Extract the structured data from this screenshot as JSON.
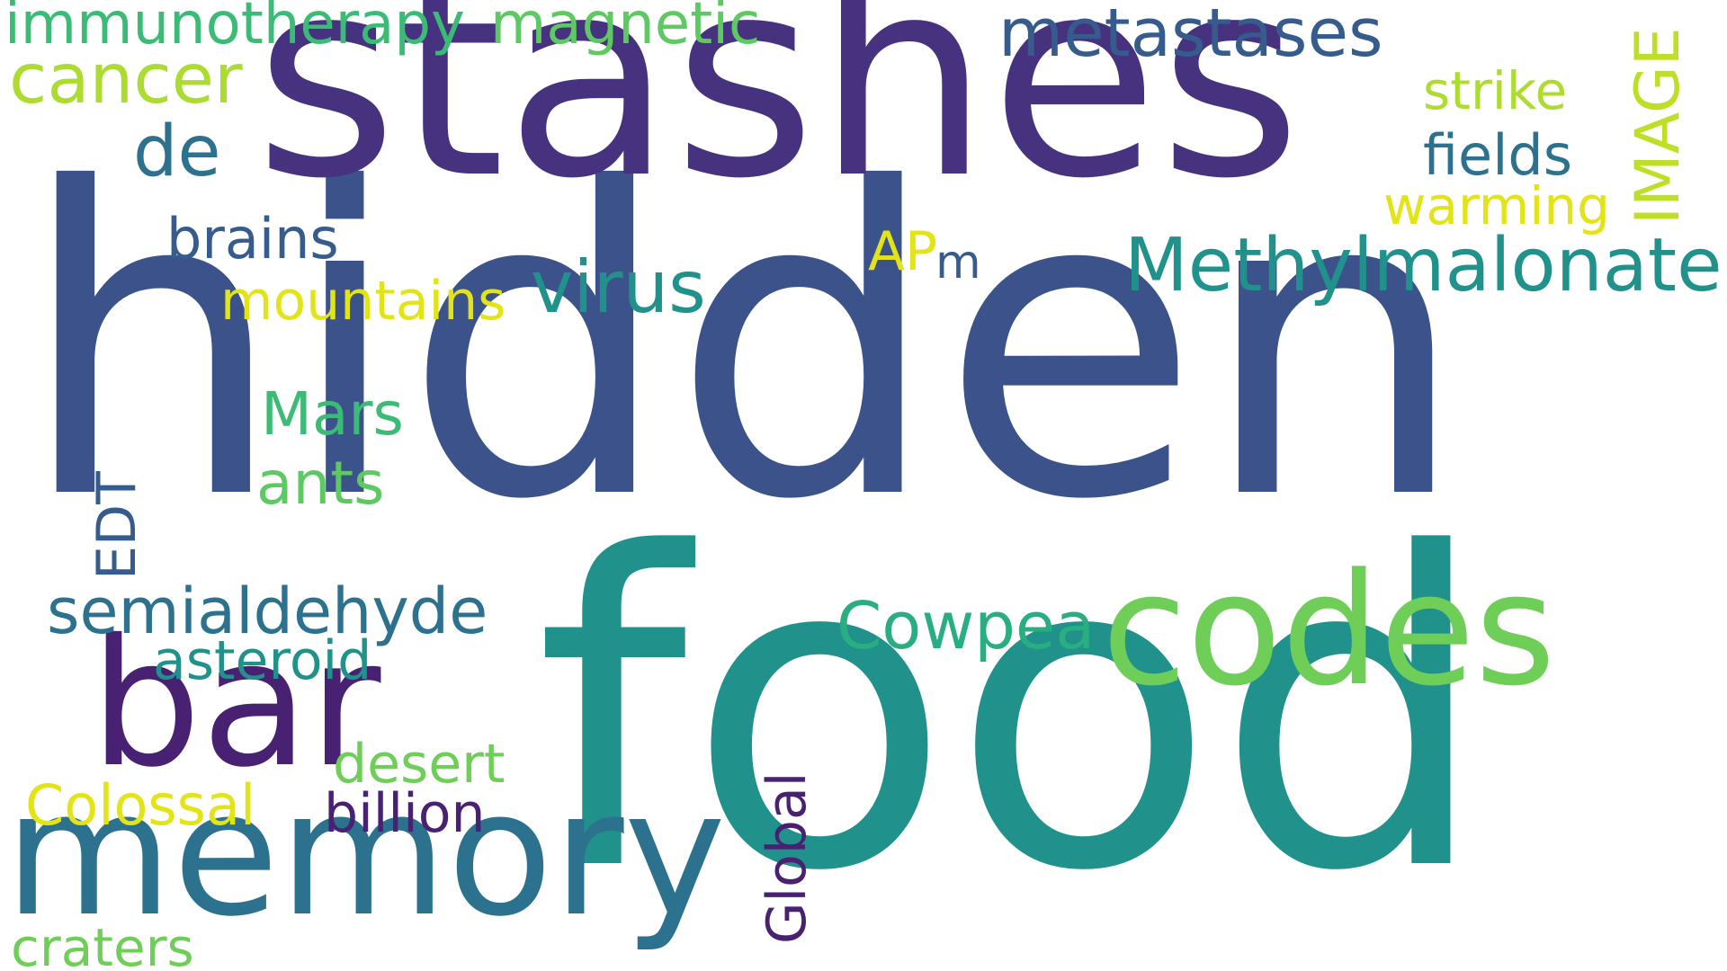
{
  "word_cloud": {
    "colors": {
      "background": "#ffffff",
      "dark_purple": "#46327e",
      "deep_purple": "#482173",
      "navy_blue": "#3b528b",
      "slate_blue": "#365c8d",
      "steel_blue": "#2c728e",
      "teal": "#21918c",
      "sea_green": "#1fa187",
      "green": "#28ae80",
      "emerald": "#3bbb75",
      "light_green": "#5ec962",
      "lime": "#6ece58",
      "yellow_green": "#addc30",
      "bright_yellow_green": "#bddf26",
      "yellow": "#e2e418"
    },
    "words": [
      {
        "text": "hidden",
        "color": "#3b528b"
      },
      {
        "text": "food",
        "color": "#21918c"
      },
      {
        "text": "stashes",
        "color": "#46327e"
      },
      {
        "text": "codes",
        "color": "#6ece58"
      },
      {
        "text": "memory",
        "color": "#2c728e"
      },
      {
        "text": "bar",
        "color": "#482173"
      },
      {
        "text": "Methylmalonate",
        "color": "#21918c"
      },
      {
        "text": "metastases",
        "color": "#365c8d"
      },
      {
        "text": "immunotherapy",
        "color": "#3bbb75"
      },
      {
        "text": "magnetic",
        "color": "#5ec962"
      },
      {
        "text": "cancer",
        "color": "#addc30"
      },
      {
        "text": "de",
        "color": "#2c728e"
      },
      {
        "text": "virus",
        "color": "#21918c"
      },
      {
        "text": "brains",
        "color": "#365c8d"
      },
      {
        "text": "mountains",
        "color": "#e2e418"
      },
      {
        "text": "AP",
        "color": "#e2e418"
      },
      {
        "text": "m",
        "color": "#365c8d"
      },
      {
        "text": "strike",
        "color": "#addc30"
      },
      {
        "text": "fields",
        "color": "#2c728e"
      },
      {
        "text": "warming",
        "color": "#e2e418"
      },
      {
        "text": "IMAGE",
        "color": "#bddf26"
      },
      {
        "text": "Mars",
        "color": "#3bbb75"
      },
      {
        "text": "ants",
        "color": "#5ec962"
      },
      {
        "text": "EDT",
        "color": "#365c8d"
      },
      {
        "text": "semialdehyde",
        "color": "#2c728e"
      },
      {
        "text": "Cowpea",
        "color": "#28ae80"
      },
      {
        "text": "asteroid",
        "color": "#21918c"
      },
      {
        "text": "desert",
        "color": "#6ece58"
      },
      {
        "text": "Colossal",
        "color": "#e2e418"
      },
      {
        "text": "billion",
        "color": "#482173"
      },
      {
        "text": "Global",
        "color": "#482173"
      },
      {
        "text": "craters",
        "color": "#6ece58"
      }
    ]
  }
}
